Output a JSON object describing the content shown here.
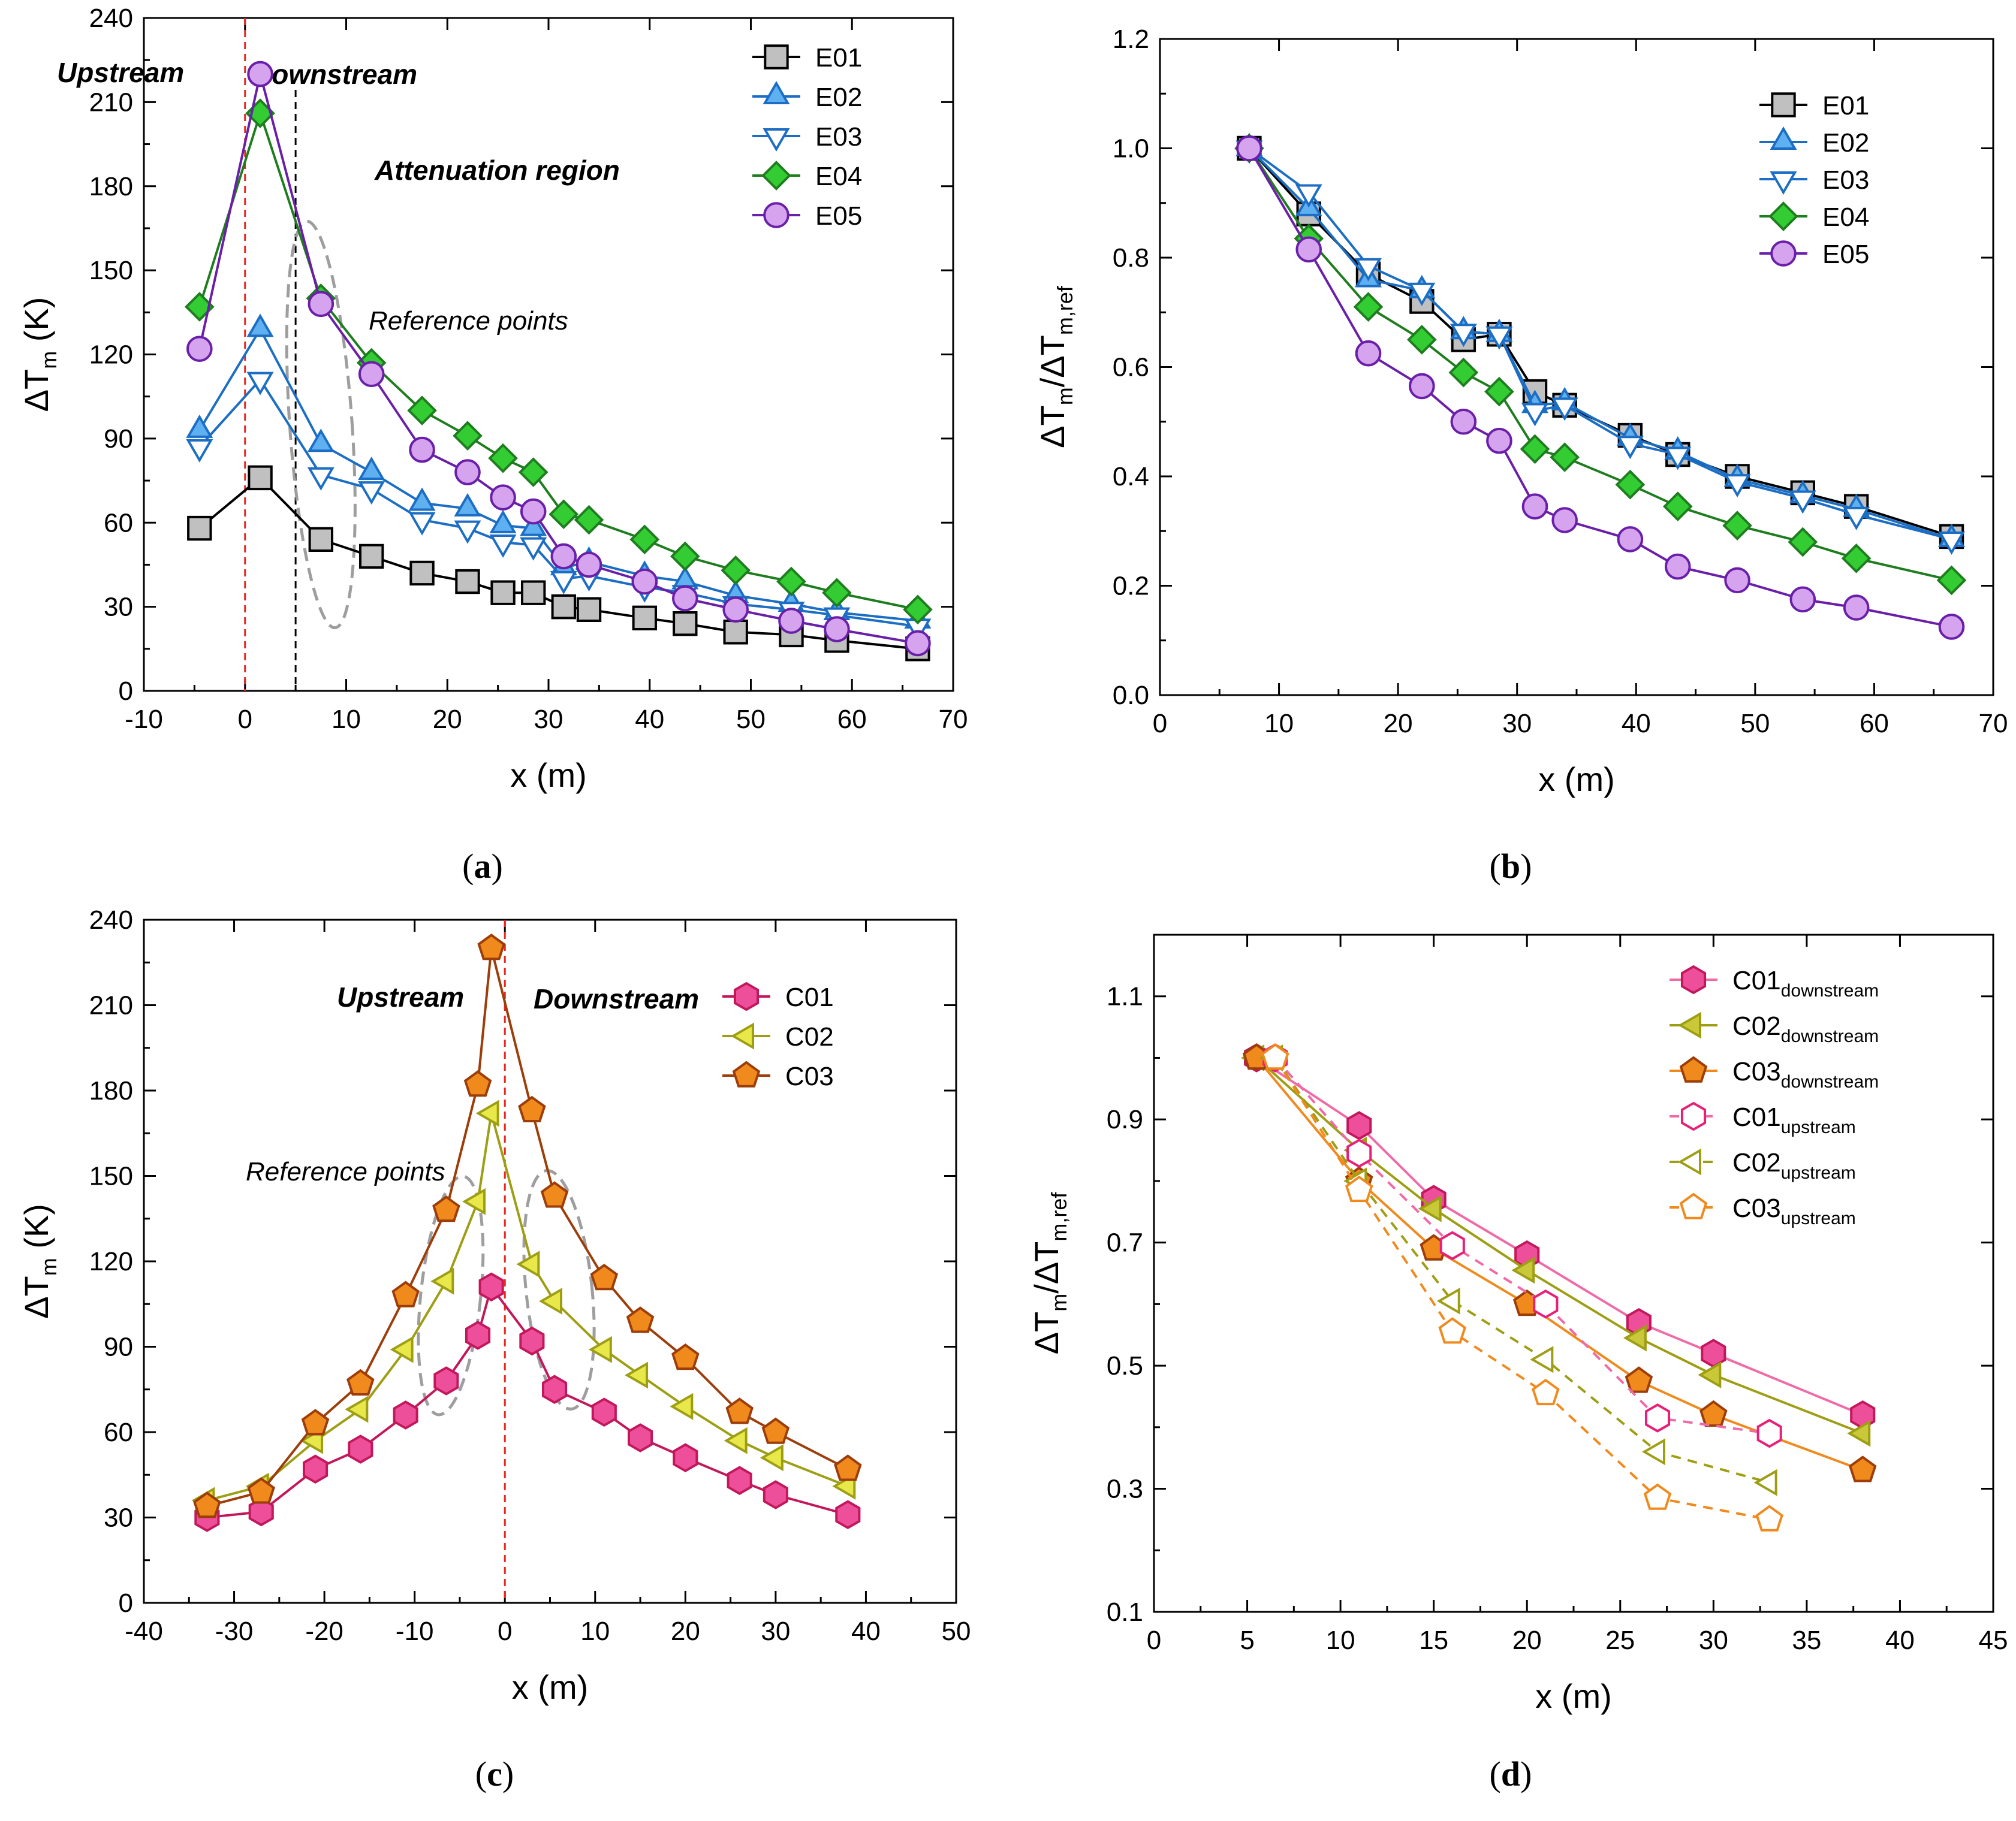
{
  "figure": {
    "panels": [
      {
        "id": "a",
        "caption_label": "a"
      },
      {
        "id": "b",
        "caption_label": "b"
      },
      {
        "id": "c",
        "caption_label": "c"
      },
      {
        "id": "d",
        "caption_label": "d"
      }
    ]
  },
  "chart_data": [
    {
      "id": "a",
      "type": "line",
      "xlabel": "x (m)",
      "ylabel": "ΔT",
      "ylabel_sub": "m",
      "ylabel_unit": " (K)",
      "xlim": [
        -10,
        70
      ],
      "ylim": [
        0,
        240
      ],
      "xticks": [
        -10,
        0,
        10,
        20,
        30,
        40,
        50,
        60,
        70
      ],
      "yticks": [
        0,
        30,
        60,
        90,
        120,
        150,
        180,
        210,
        240
      ],
      "annotations": {
        "upstream": "Upstream",
        "downstream": "Downstream",
        "attenuation": "Attenuation region",
        "reference": "Reference points"
      },
      "series": [
        {
          "name": "E01",
          "color": "#000000",
          "fill": "#c0c0c0",
          "marker": "square",
          "dash": false,
          "x": [
            -4.5,
            1.5,
            7.5,
            12.5,
            17.5,
            22,
            25.5,
            28.5,
            31.5,
            34,
            39.5,
            43.5,
            48.5,
            54,
            58.5,
            66.5
          ],
          "y": [
            58,
            76,
            54,
            48,
            42,
            39,
            35,
            35,
            30,
            29,
            26,
            24,
            21,
            20,
            18,
            15
          ]
        },
        {
          "name": "E02",
          "color": "#1c6ec4",
          "fill": "#5fb0f0",
          "marker": "triangle-up",
          "dash": false,
          "x": [
            -4.5,
            1.5,
            7.5,
            12.5,
            17.5,
            22,
            25.5,
            28.5,
            31.5,
            34,
            39.5,
            43.5,
            48.5,
            54,
            58.5,
            66.5
          ],
          "y": [
            93,
            129,
            88,
            78,
            67,
            65,
            59,
            58,
            44,
            46,
            41,
            39,
            34,
            31,
            28,
            25
          ]
        },
        {
          "name": "E03",
          "color": "#1c6ec4",
          "fill": "#ffffff",
          "marker": "triangle-down",
          "dash": false,
          "x": [
            -4.5,
            1.5,
            7.5,
            12.5,
            17.5,
            22,
            25.5,
            28.5,
            31.5,
            34,
            39.5,
            43.5,
            48.5,
            54,
            58.5,
            66.5
          ],
          "y": [
            87,
            111,
            77,
            72,
            61,
            58,
            53,
            52,
            40,
            41,
            37,
            35,
            31,
            29,
            27,
            23
          ]
        },
        {
          "name": "E04",
          "color": "#1e7d1e",
          "fill": "#33cc33",
          "marker": "diamond",
          "dash": false,
          "x": [
            -4.5,
            1.5,
            7.5,
            12.5,
            17.5,
            22,
            25.5,
            28.5,
            31.5,
            34,
            39.5,
            43.5,
            48.5,
            54,
            58.5,
            66.5
          ],
          "y": [
            137,
            206,
            140,
            117,
            100,
            91,
            83,
            78,
            63,
            61,
            54,
            48,
            43,
            39,
            35,
            29
          ]
        },
        {
          "name": "E05",
          "color": "#6a1fa8",
          "fill": "#d6a3ee",
          "marker": "circle",
          "dash": false,
          "x": [
            -4.5,
            1.5,
            7.5,
            12.5,
            17.5,
            22,
            25.5,
            28.5,
            31.5,
            34,
            39.5,
            43.5,
            48.5,
            54,
            58.5,
            66.5
          ],
          "y": [
            122,
            220,
            138,
            113,
            86,
            78,
            69,
            64,
            48,
            45,
            39,
            33,
            29,
            25,
            22,
            17
          ]
        }
      ]
    },
    {
      "id": "b",
      "type": "line",
      "xlabel": "x (m)",
      "ylabel": "ΔT",
      "ylabel_sub": "m",
      "ylabel_mid": "/ΔT",
      "ylabel_sub2": "m,ref",
      "xlim": [
        0,
        70
      ],
      "ylim": [
        0.0,
        1.2
      ],
      "xticks": [
        0,
        10,
        20,
        30,
        40,
        50,
        60,
        70
      ],
      "yticks": [
        0.0,
        0.2,
        0.4,
        0.6,
        0.8,
        1.0,
        1.2
      ],
      "series": [
        {
          "name": "E01",
          "color": "#000000",
          "fill": "#c0c0c0",
          "marker": "square",
          "dash": false,
          "x": [
            7.5,
            12.5,
            17.5,
            22,
            25.5,
            28.5,
            31.5,
            34,
            39.5,
            43.5,
            48.5,
            54,
            58.5,
            66.5
          ],
          "y": [
            1.0,
            0.88,
            0.77,
            0.72,
            0.65,
            0.66,
            0.555,
            0.53,
            0.475,
            0.44,
            0.4,
            0.37,
            0.345,
            0.29
          ]
        },
        {
          "name": "E02",
          "color": "#1c6ec4",
          "fill": "#5fb0f0",
          "marker": "triangle-up",
          "dash": false,
          "x": [
            7.5,
            12.5,
            17.5,
            22,
            25.5,
            28.5,
            31.5,
            34,
            39.5,
            43.5,
            48.5,
            54,
            58.5,
            66.5
          ],
          "y": [
            1.0,
            0.89,
            0.76,
            0.74,
            0.665,
            0.66,
            0.53,
            0.535,
            0.47,
            0.445,
            0.395,
            0.365,
            0.34,
            0.285
          ]
        },
        {
          "name": "E03",
          "color": "#1c6ec4",
          "fill": "#ffffff",
          "marker": "triangle-down",
          "dash": false,
          "x": [
            7.5,
            12.5,
            17.5,
            22,
            25.5,
            28.5,
            31.5,
            34,
            39.5,
            43.5,
            48.5,
            54,
            58.5,
            66.5
          ],
          "y": [
            1.0,
            0.92,
            0.785,
            0.74,
            0.665,
            0.66,
            0.52,
            0.53,
            0.46,
            0.44,
            0.39,
            0.36,
            0.33,
            0.285
          ]
        },
        {
          "name": "E04",
          "color": "#1e7d1e",
          "fill": "#33cc33",
          "marker": "diamond",
          "dash": false,
          "x": [
            7.5,
            12.5,
            17.5,
            22,
            25.5,
            28.5,
            31.5,
            34,
            39.5,
            43.5,
            48.5,
            54,
            58.5,
            66.5
          ],
          "y": [
            1.0,
            0.835,
            0.71,
            0.65,
            0.59,
            0.555,
            0.45,
            0.435,
            0.385,
            0.345,
            0.31,
            0.28,
            0.25,
            0.21
          ]
        },
        {
          "name": "E05",
          "color": "#6a1fa8",
          "fill": "#d6a3ee",
          "marker": "circle",
          "dash": false,
          "x": [
            7.5,
            12.5,
            17.5,
            22,
            25.5,
            28.5,
            31.5,
            34,
            39.5,
            43.5,
            48.5,
            54,
            58.5,
            66.5
          ],
          "y": [
            1.0,
            0.815,
            0.625,
            0.565,
            0.5,
            0.465,
            0.345,
            0.32,
            0.285,
            0.235,
            0.21,
            0.175,
            0.16,
            0.125
          ]
        }
      ]
    },
    {
      "id": "c",
      "type": "line",
      "xlabel": "x (m)",
      "ylabel": "ΔT",
      "ylabel_sub": "m",
      "ylabel_unit": " (K)",
      "xlim": [
        -40,
        50
      ],
      "ylim": [
        0,
        240
      ],
      "xticks": [
        -40,
        -30,
        -20,
        -10,
        0,
        10,
        20,
        30,
        40,
        50
      ],
      "yticks": [
        0,
        30,
        60,
        90,
        120,
        150,
        180,
        210,
        240
      ],
      "annotations": {
        "upstream": "Upstream",
        "downstream": "Downstream",
        "reference": "Reference points"
      },
      "series": [
        {
          "name": "C01",
          "color": "#c2185b",
          "fill": "#ee4f9a",
          "marker": "hexagon",
          "dash": false,
          "x": [
            -33,
            -27,
            -21,
            -16,
            -11,
            -6.5,
            -3,
            -1.5,
            3,
            5.5,
            11,
            15,
            20,
            26,
            30,
            38
          ],
          "y": [
            30,
            32,
            47,
            54,
            66,
            78,
            94,
            111,
            92,
            75,
            67,
            58,
            51,
            43,
            38,
            31
          ]
        },
        {
          "name": "C02",
          "color": "#9e9e14",
          "fill": "#e8e84a",
          "marker": "triangle-left",
          "dash": false,
          "x": [
            -33,
            -27,
            -21,
            -16,
            -11,
            -6.5,
            -3,
            -1.5,
            3,
            5.5,
            11,
            15,
            20,
            26,
            30,
            38
          ],
          "y": [
            36,
            41,
            57,
            68,
            89,
            113,
            141,
            172,
            119,
            106,
            89,
            80,
            69,
            57,
            51,
            41
          ]
        },
        {
          "name": "C03",
          "color": "#9c3d0a",
          "fill": "#f08a1c",
          "marker": "pentagon",
          "dash": false,
          "x": [
            -33,
            -27,
            -21,
            -16,
            -11,
            -6.5,
            -3,
            -1.5,
            3,
            5.5,
            11,
            15,
            20,
            26,
            30,
            38
          ],
          "y": [
            34,
            39,
            63,
            77,
            108,
            138,
            182,
            230,
            173,
            143,
            114,
            99,
            86,
            67,
            60,
            47
          ]
        }
      ]
    },
    {
      "id": "d",
      "type": "line",
      "xlabel": "x (m)",
      "ylabel": "ΔT",
      "ylabel_sub": "m",
      "ylabel_mid": "/ΔT",
      "ylabel_sub2": "m,ref",
      "xlim": [
        0,
        45
      ],
      "ylim": [
        0.1,
        1.2
      ],
      "xticks": [
        0,
        5,
        10,
        15,
        20,
        25,
        30,
        35,
        40,
        45
      ],
      "yticks": [
        0.1,
        0.3,
        0.5,
        0.7,
        0.9,
        1.1
      ],
      "series": [
        {
          "name": "C01",
          "sub": "downstream",
          "color": "#f06aa8",
          "edge": "#c2185b",
          "fill": "#ee4f9a",
          "marker": "hexagon",
          "dash": false,
          "x": [
            5.5,
            11,
            15,
            20,
            26,
            30,
            38
          ],
          "y": [
            1.0,
            0.89,
            0.77,
            0.68,
            0.57,
            0.52,
            0.42
          ]
        },
        {
          "name": "C02",
          "sub": "downstream",
          "color": "#9e9e14",
          "edge": "#9e9e14",
          "fill": "#c8c838",
          "marker": "triangle-left",
          "dash": false,
          "x": [
            5.5,
            11,
            15,
            20,
            26,
            30,
            38
          ],
          "y": [
            1.0,
            0.85,
            0.755,
            0.655,
            0.545,
            0.485,
            0.39
          ]
        },
        {
          "name": "C03",
          "sub": "downstream",
          "color": "#f08a1c",
          "edge": "#9c3d0a",
          "fill": "#f08a1c",
          "marker": "pentagon",
          "dash": false,
          "x": [
            5.5,
            11,
            15,
            20,
            26,
            30,
            38
          ],
          "y": [
            1.0,
            0.8,
            0.69,
            0.6,
            0.475,
            0.42,
            0.33
          ]
        },
        {
          "name": "C01",
          "sub": "upstream",
          "color": "#f06aa8",
          "edge": "#e91e78",
          "fill": "#ffffff",
          "marker": "hexagon",
          "dash": true,
          "x": [
            6.5,
            11,
            16,
            21,
            27,
            33
          ],
          "y": [
            1.0,
            0.845,
            0.695,
            0.6,
            0.415,
            0.39
          ]
        },
        {
          "name": "C02",
          "sub": "upstream",
          "color": "#9e9e14",
          "edge": "#9e9e14",
          "fill": "#ffffff",
          "marker": "triangle-left",
          "dash": true,
          "x": [
            6.5,
            11,
            16,
            21,
            27,
            33
          ],
          "y": [
            1.0,
            0.8,
            0.605,
            0.51,
            0.36,
            0.31
          ]
        },
        {
          "name": "C03",
          "sub": "upstream",
          "color": "#f08a1c",
          "edge": "#f08a1c",
          "fill": "#ffffff",
          "marker": "pentagon",
          "dash": true,
          "x": [
            6.5,
            11,
            16,
            21,
            27,
            33
          ],
          "y": [
            1.0,
            0.785,
            0.555,
            0.455,
            0.285,
            0.25
          ]
        }
      ]
    }
  ]
}
